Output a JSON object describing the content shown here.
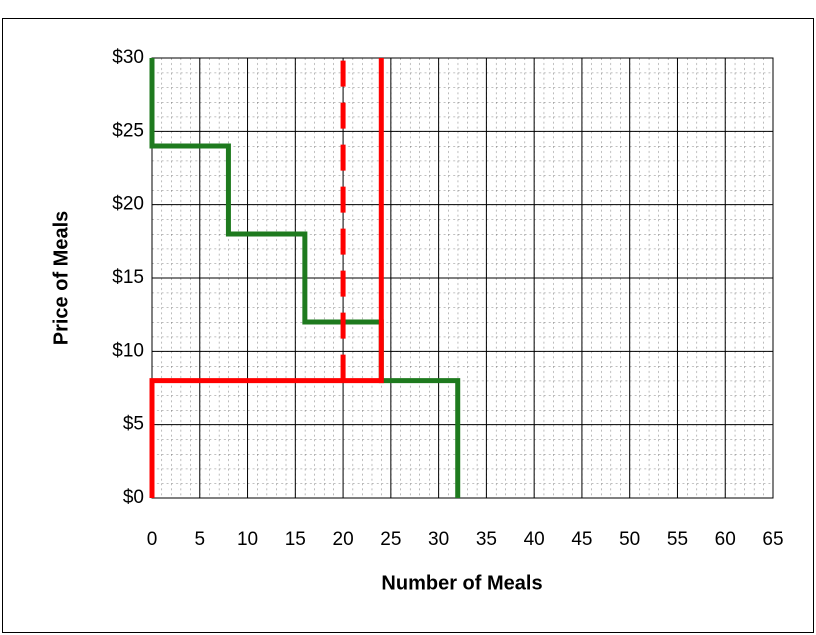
{
  "chart_data": {
    "type": "line",
    "x_label": "Number of Meals",
    "y_label": "Price of Meals",
    "xlim": [
      0,
      65
    ],
    "xticks": [
      0,
      5,
      10,
      15,
      20,
      25,
      30,
      35,
      40,
      45,
      50,
      55,
      60,
      65
    ],
    "ylim": [
      0,
      30
    ],
    "yticks": [
      {
        "value": 0,
        "label": "$0"
      },
      {
        "value": 5,
        "label": "$5"
      },
      {
        "value": 10,
        "label": "$10"
      },
      {
        "value": 15,
        "label": "$15"
      },
      {
        "value": 20,
        "label": "$20"
      },
      {
        "value": 25,
        "label": "$25"
      },
      {
        "value": 30,
        "label": "$30"
      }
    ],
    "grid": true,
    "series": [
      {
        "color": "#1e7a1e",
        "dashed": false,
        "x": [
          0,
          0,
          8,
          8,
          16,
          16,
          24,
          24,
          32,
          32
        ],
        "values": [
          30,
          24,
          24,
          18,
          18,
          12,
          12,
          8,
          8,
          0
        ]
      },
      {
        "color": "#ff0000",
        "dashed": false,
        "x": [
          0,
          0,
          24,
          24
        ],
        "values": [
          0,
          8,
          8,
          30
        ]
      },
      {
        "color": "#ff0000",
        "dashed": true,
        "x": [
          20,
          20
        ],
        "values": [
          8,
          30
        ]
      }
    ]
  }
}
